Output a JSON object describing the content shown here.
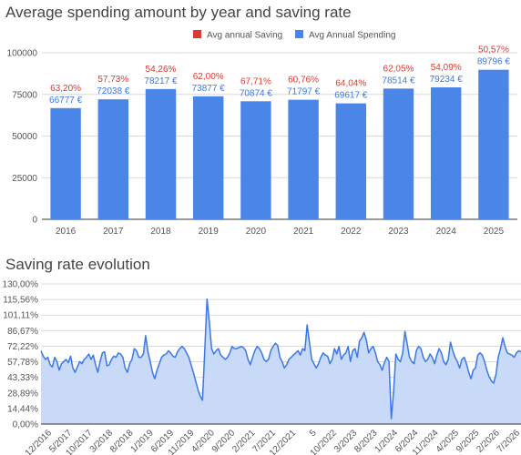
{
  "chart_data": [
    {
      "type": "bar",
      "title": "Average spending amount by year and saving rate",
      "legend": {
        "position": "top",
        "entries": [
          {
            "name": "Avg annual Saving",
            "color": "#db3a30"
          },
          {
            "name": "Avg Annual Spending",
            "color": "#4a86e8"
          }
        ]
      },
      "categories": [
        "2016",
        "2017",
        "2018",
        "2019",
        "2020",
        "2021",
        "2022",
        "2023",
        "2024",
        "2025"
      ],
      "series": [
        {
          "name": "Avg Annual Spending",
          "color": "#4a86e8",
          "values": [
            66777,
            72038,
            78217,
            73877,
            70874,
            71797,
            69617,
            78514,
            79234,
            89796
          ],
          "labels": [
            "66777 €",
            "72038 €",
            "78217 €",
            "73877 €",
            "70874 €",
            "71797 €",
            "69617 €",
            "78514 €",
            "79234 €",
            "89796 €"
          ]
        },
        {
          "name": "Avg annual Saving",
          "color": "#db3a30",
          "labels": [
            "63,20%",
            "57,73%",
            "54,26%",
            "62,00%",
            "67,71%",
            "60,76%",
            "64,04%",
            "62,05%",
            "54,09%",
            "50,57%"
          ]
        }
      ],
      "ylim": [
        0,
        100000
      ],
      "yticks": [
        0,
        25000,
        50000,
        75000,
        100000
      ],
      "ytick_labels": [
        "0",
        "25000",
        "50000",
        "75000",
        "100000"
      ],
      "grid": true
    },
    {
      "type": "area",
      "title": "Saving rate evolution",
      "color": "#3b78e7",
      "fill_color": "#c9daf8",
      "ylim": [
        0,
        130
      ],
      "yticks": [
        0,
        14.44,
        28.89,
        43.33,
        57.78,
        72.22,
        86.67,
        101.11,
        115.56,
        130
      ],
      "ytick_labels": [
        "0,00%",
        "14,44%",
        "28,89%",
        "43,33%",
        "57,78%",
        "72,22%",
        "86,67%",
        "101,11%",
        "115,56%",
        "130,00%"
      ],
      "xtick_labels": [
        "12/2016",
        "5/2017",
        "10/2017",
        "3/2018",
        "8/2018",
        "1/2019",
        "6/2019",
        "11/2019",
        "4/2020",
        "9/2020",
        "2/2021",
        "7/2021",
        "12/2021",
        "5",
        "10/2022",
        "3/2023",
        "8/2023",
        "1/2024",
        "6/2024",
        "11/2024",
        "4/2025",
        "9/2025",
        "2/2026",
        "7/2026"
      ],
      "values": [
        68,
        63,
        60,
        62,
        55,
        53,
        62,
        58,
        50,
        56,
        58,
        60,
        57,
        63,
        52,
        48,
        53,
        58,
        56,
        60,
        62,
        65,
        60,
        64,
        55,
        48,
        58,
        66,
        67,
        54,
        55,
        60,
        63,
        62,
        66,
        65,
        62,
        52,
        48,
        56,
        60,
        70,
        68,
        62,
        62,
        65,
        82,
        67,
        58,
        48,
        42,
        50,
        56,
        62,
        64,
        65,
        68,
        66,
        63,
        62,
        67,
        70,
        72,
        70,
        66,
        62,
        55,
        48,
        40,
        32,
        26,
        22,
        68,
        116,
        95,
        70,
        65,
        68,
        70,
        64,
        62,
        60,
        62,
        66,
        72,
        70,
        70,
        71,
        72,
        71,
        68,
        60,
        55,
        62,
        68,
        72,
        70,
        66,
        60,
        58,
        60,
        68,
        72,
        75,
        73,
        62,
        58,
        52,
        55,
        60,
        62,
        64,
        66,
        68,
        64,
        70,
        68,
        92,
        76,
        60,
        56,
        52,
        56,
        62,
        66,
        64,
        63,
        56,
        60,
        70,
        65,
        72,
        60,
        64,
        66,
        72,
        58,
        68,
        70,
        62,
        77,
        80,
        85,
        78,
        66,
        70,
        72,
        66,
        58,
        55,
        50,
        57,
        62,
        58,
        5,
        30,
        65,
        60,
        58,
        66,
        86,
        74,
        62,
        58,
        56,
        68,
        72,
        70,
        62,
        58,
        60,
        65,
        62,
        56,
        64,
        70,
        66,
        58,
        55,
        60,
        76,
        68,
        62,
        58,
        52,
        60,
        62,
        56,
        48,
        42,
        50,
        52,
        64,
        66,
        64,
        58,
        50,
        44,
        40,
        38,
        46,
        62,
        70,
        80,
        72,
        66,
        65,
        64,
        62,
        66,
        68,
        67
      ]
    }
  ]
}
